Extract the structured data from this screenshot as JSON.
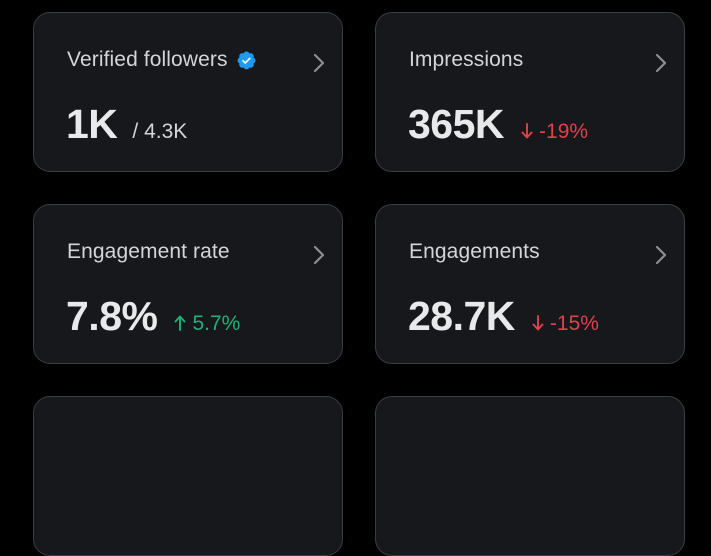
{
  "cards": [
    {
      "title": "Verified followers",
      "value": "1K",
      "sub": "/ 4.3K",
      "icons": [
        "verified-badge-icon",
        "chevron-right-icon"
      ]
    },
    {
      "title": "Impressions",
      "value": "365K",
      "delta": "-19%",
      "trend": "down",
      "icons": [
        "arrow-down-icon",
        "chevron-right-icon"
      ]
    },
    {
      "title": "Engagement rate",
      "value": "7.8%",
      "delta": "5.7%",
      "trend": "up",
      "icons": [
        "arrow-up-icon",
        "chevron-right-icon"
      ]
    },
    {
      "title": "Engagements",
      "value": "28.7K",
      "delta": "-15%",
      "trend": "down",
      "icons": [
        "arrow-down-icon",
        "chevron-right-icon"
      ]
    }
  ],
  "colors": {
    "background": "#000000",
    "card_background": "#16181c",
    "card_border": "#3a3d42",
    "text_primary": "#e7e9ea",
    "text_secondary": "#d3d5d8",
    "verified_blue": "#1d9bf0",
    "negative": "#e0414c",
    "positive": "#1fb07a"
  }
}
